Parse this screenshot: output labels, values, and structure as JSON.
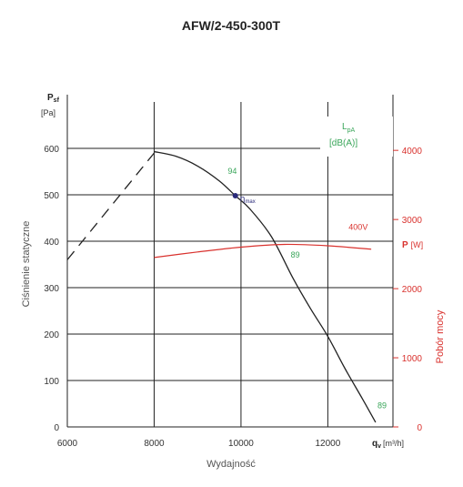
{
  "chart_data": {
    "type": "line",
    "title": "AFW/2-450-300T",
    "xlabel": "Wydajność",
    "x_unit_symbol": "q",
    "x_unit_sub": "v",
    "x_unit_bracket": "[m³/h]",
    "xlim": [
      6000,
      13500
    ],
    "x_ticks": [
      6000,
      8000,
      10000,
      12000
    ],
    "ylabel": "Ciśnienie statyczne",
    "y_unit_symbol": "P",
    "y_unit_sub": "sf",
    "y_unit_bracket": "[Pa]",
    "ylim": [
      0,
      700
    ],
    "y_ticks": [
      0,
      100,
      200,
      300,
      400,
      500,
      600
    ],
    "y2label": "Pobór mocy",
    "y2_unit_symbol": "P",
    "y2_unit_bracket": "[W]",
    "y2lim": [
      0,
      4700
    ],
    "y2_ticks": [
      0,
      1000,
      2000,
      3000,
      4000
    ],
    "lpa_label": "L",
    "lpa_sub": "pA",
    "lpa_unit": "[dB(A)]",
    "eta_label": "η",
    "eta_sub": "max",
    "series": [
      {
        "role": "pressure-unstable",
        "color": "#222222",
        "dashed": true,
        "axis": "left",
        "x": [
          6000,
          8000
        ],
        "y": [
          360,
          590
        ]
      },
      {
        "role": "pressure",
        "color": "#222222",
        "dashed": false,
        "axis": "left",
        "x": [
          8000,
          8500,
          9000,
          9500,
          9870,
          10200,
          10700,
          11200,
          11600,
          12000,
          12400,
          12800,
          13100
        ],
        "y": [
          593,
          583,
          562,
          530,
          498,
          470,
          410,
          320,
          255,
          195,
          125,
          60,
          10
        ]
      },
      {
        "name": "400V",
        "role": "power",
        "color": "#d9322e",
        "dashed": false,
        "axis": "right",
        "x": [
          8000,
          9000,
          10000,
          11000,
          12000,
          13000
        ],
        "y": [
          2450,
          2530,
          2600,
          2640,
          2620,
          2570
        ]
      }
    ],
    "points": [
      {
        "label": "η max",
        "x": 9870,
        "y": 498
      }
    ],
    "annotations": [
      {
        "text": "94",
        "x": 9800,
        "y": 545,
        "color": "#3aa65a"
      },
      {
        "text": "89",
        "x": 11250,
        "y": 365,
        "color": "#3aa65a"
      },
      {
        "text": "89",
        "x": 13250,
        "y": 40,
        "color": "#3aa65a"
      },
      {
        "text": "400V",
        "x": 12700,
        "y": 2850,
        "axis": "right",
        "color": "#d9322e"
      }
    ],
    "grid": true,
    "colors": {
      "pressure": "#222222",
      "power": "#d9322e",
      "noise": "#3aa65a",
      "eta_point": "#2a2a7a"
    }
  }
}
